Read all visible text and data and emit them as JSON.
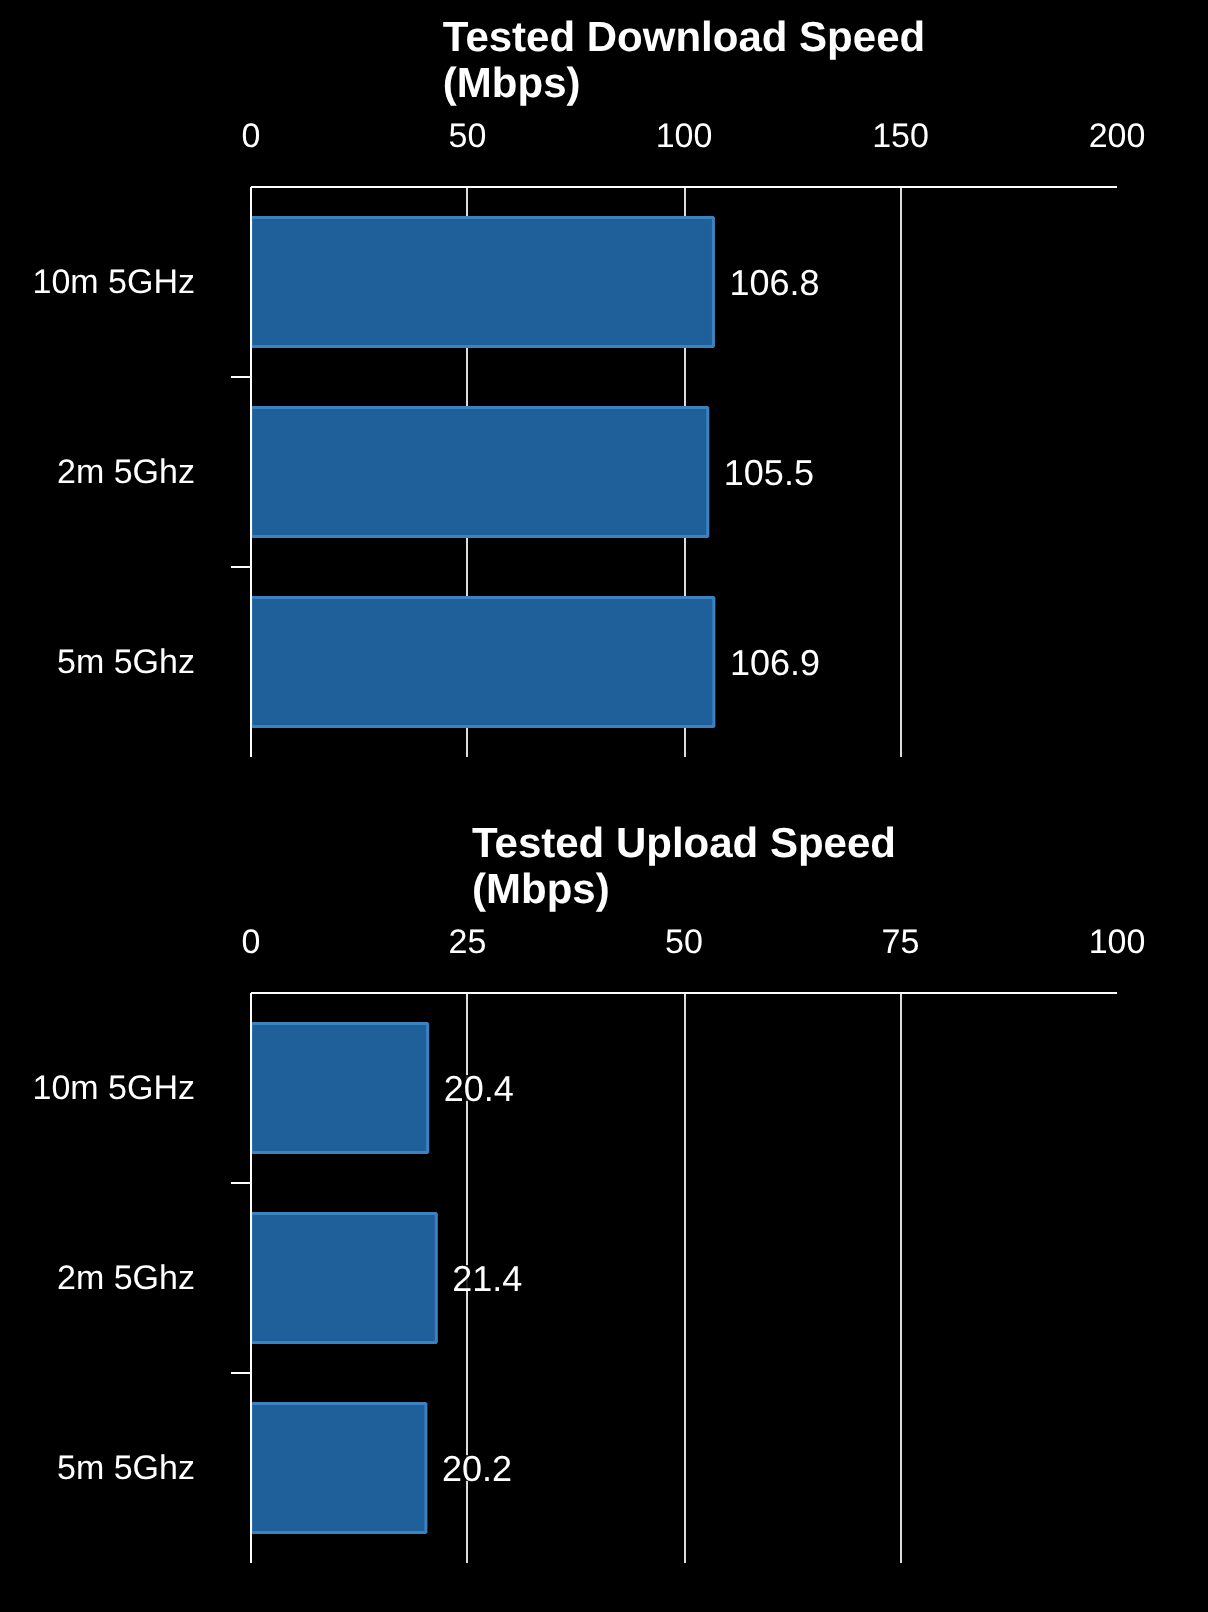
{
  "chart_data": [
    {
      "type": "bar",
      "orientation": "horizontal",
      "title": "Tested Download Speed (Mbps)",
      "categories": [
        "10m 5GHz",
        "2m 5Ghz",
        "5m 5Ghz"
      ],
      "values": [
        106.8,
        105.5,
        106.9
      ],
      "color": "#20609a",
      "xlim": [
        0,
        200
      ],
      "xticks": [
        0,
        50,
        100,
        150,
        200
      ],
      "grid": "x",
      "data_labels": true
    },
    {
      "type": "bar",
      "orientation": "horizontal",
      "title": "Tested Upload Speed (Mbps)",
      "categories": [
        "10m 5GHz",
        "2m 5Ghz",
        "5m 5Ghz"
      ],
      "values": [
        20.4,
        21.4,
        20.2
      ],
      "color": "#20609a",
      "xlim": [
        0,
        100
      ],
      "xticks": [
        0,
        25,
        50,
        75,
        100
      ],
      "grid": "x",
      "data_labels": true
    }
  ]
}
